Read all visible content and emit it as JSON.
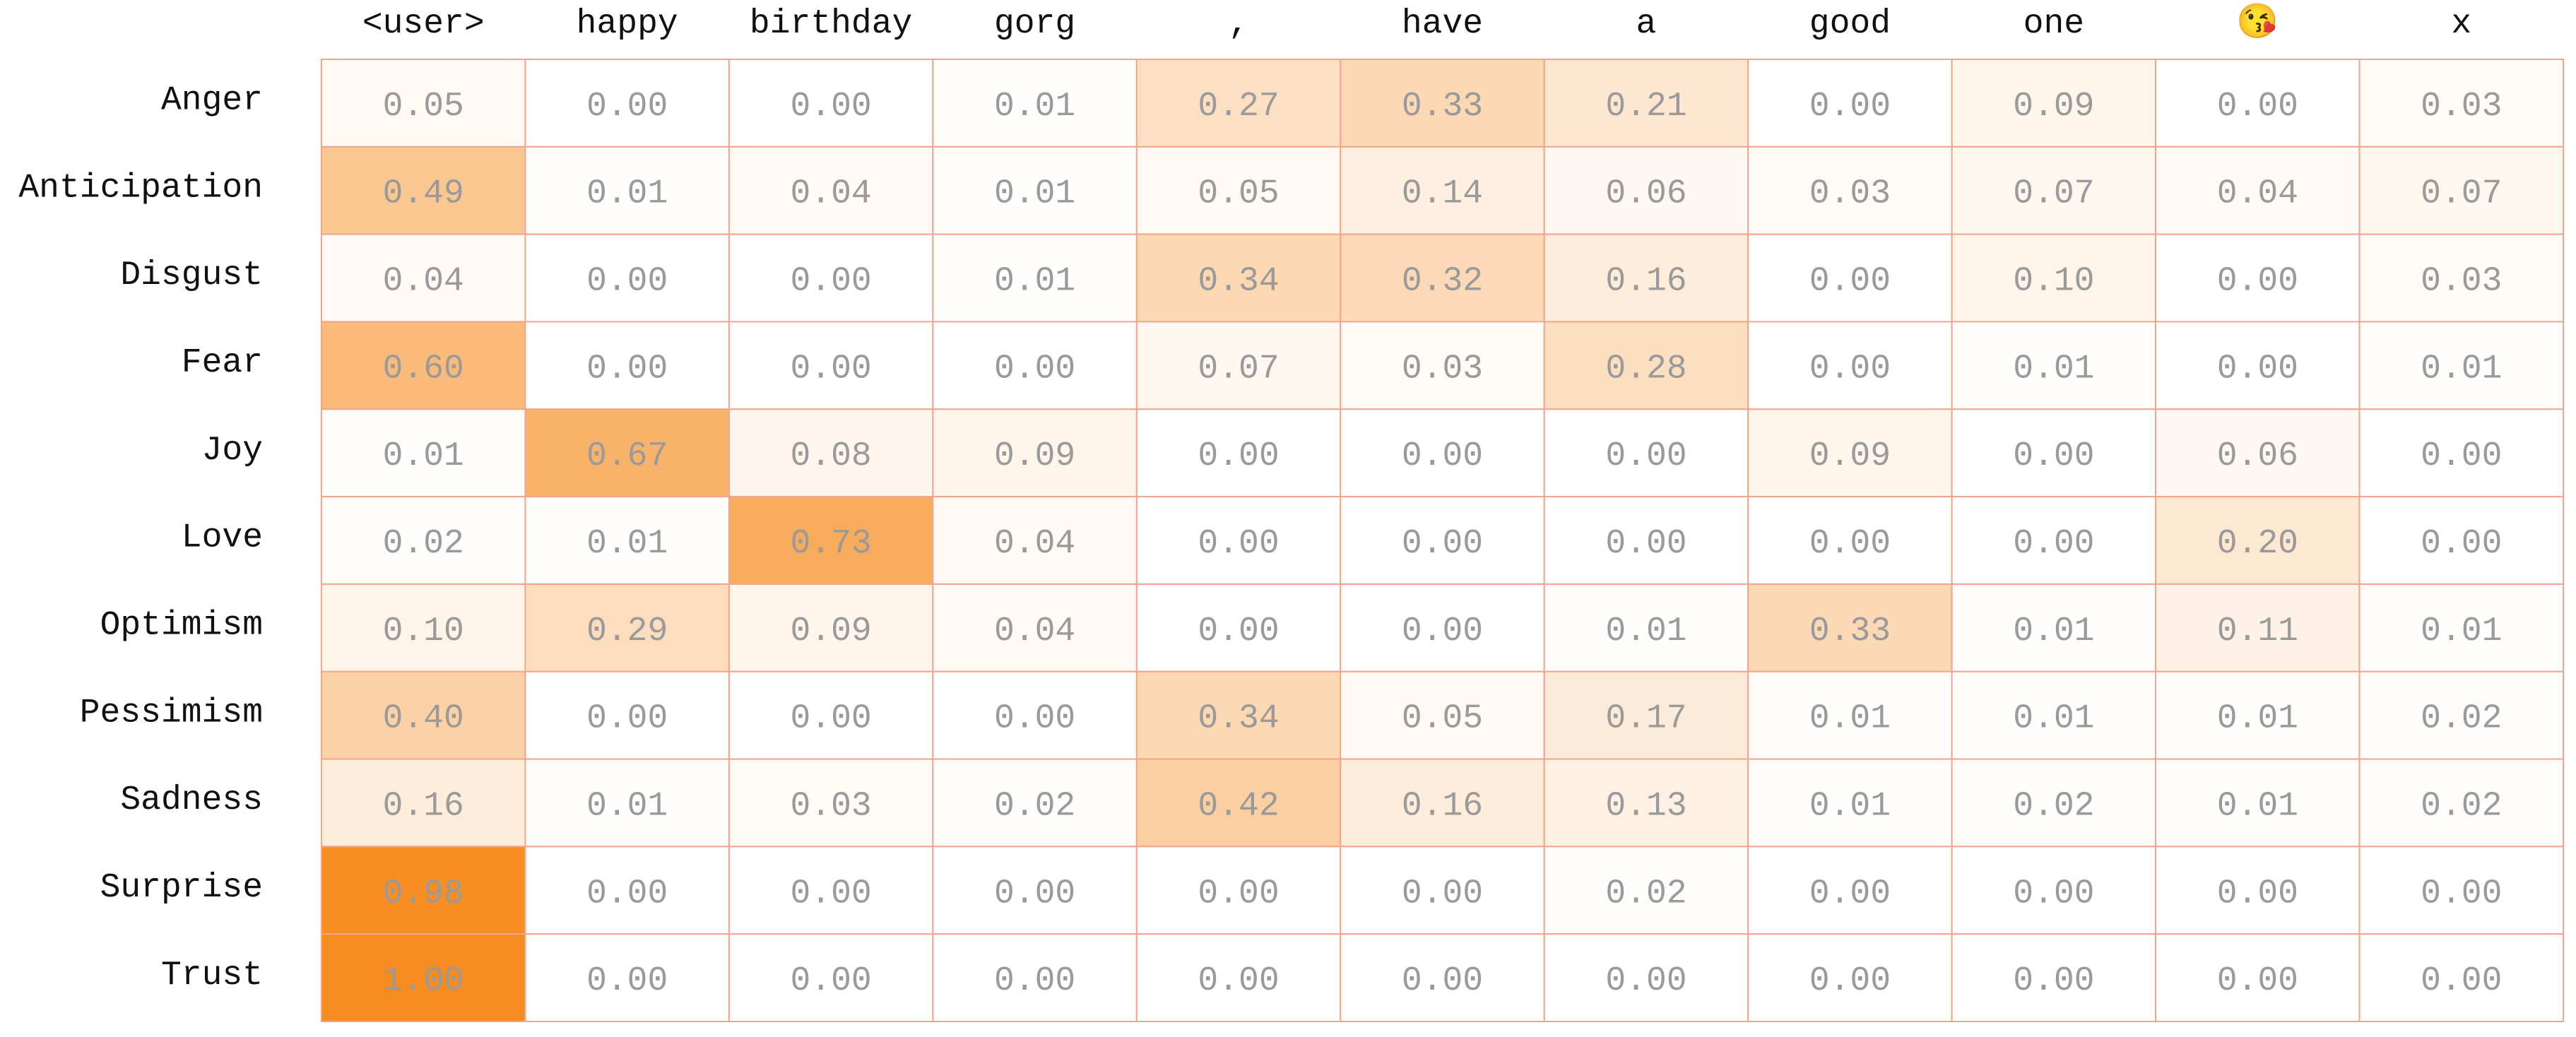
{
  "chart_data": {
    "type": "heatmap",
    "columns": [
      "<user>",
      "happy",
      "birthday",
      "gorg",
      ",",
      "have",
      "a",
      "good",
      "one",
      "😘",
      "x"
    ],
    "rows": [
      "Anger",
      "Anticipation",
      "Disgust",
      "Fear",
      "Joy",
      "Love",
      "Optimism",
      "Pessimism",
      "Sadness",
      "Surprise",
      "Trust"
    ],
    "values": [
      [
        0.05,
        0.0,
        0.0,
        0.01,
        0.27,
        0.33,
        0.21,
        0.0,
        0.09,
        0.0,
        0.03
      ],
      [
        0.49,
        0.01,
        0.04,
        0.01,
        0.05,
        0.14,
        0.06,
        0.03,
        0.07,
        0.04,
        0.07
      ],
      [
        0.04,
        0.0,
        0.0,
        0.01,
        0.34,
        0.32,
        0.16,
        0.0,
        0.1,
        0.0,
        0.03
      ],
      [
        0.6,
        0.0,
        0.0,
        0.0,
        0.07,
        0.03,
        0.28,
        0.0,
        0.01,
        0.0,
        0.01
      ],
      [
        0.01,
        0.67,
        0.08,
        0.09,
        0.0,
        0.0,
        0.0,
        0.09,
        0.0,
        0.06,
        0.0
      ],
      [
        0.02,
        0.01,
        0.73,
        0.04,
        0.0,
        0.0,
        0.0,
        0.0,
        0.0,
        0.2,
        0.0
      ],
      [
        0.1,
        0.29,
        0.09,
        0.04,
        0.0,
        0.0,
        0.01,
        0.33,
        0.01,
        0.11,
        0.01
      ],
      [
        0.4,
        0.0,
        0.0,
        0.0,
        0.34,
        0.05,
        0.17,
        0.01,
        0.01,
        0.01,
        0.02
      ],
      [
        0.16,
        0.01,
        0.03,
        0.02,
        0.42,
        0.16,
        0.13,
        0.01,
        0.02,
        0.01,
        0.02
      ],
      [
        0.98,
        0.0,
        0.0,
        0.0,
        0.0,
        0.0,
        0.02,
        0.0,
        0.0,
        0.0,
        0.0
      ],
      [
        1.0,
        0.0,
        0.0,
        0.0,
        0.0,
        0.0,
        0.0,
        0.0,
        0.0,
        0.0,
        0.0
      ]
    ],
    "value_range": [
      0,
      1
    ],
    "color_low": "#ffffff",
    "color_high": "#f68c1f",
    "cell_border_color": "#f2a48c",
    "value_text_color": "#9a9a9a",
    "grid": true,
    "legend": "none"
  }
}
